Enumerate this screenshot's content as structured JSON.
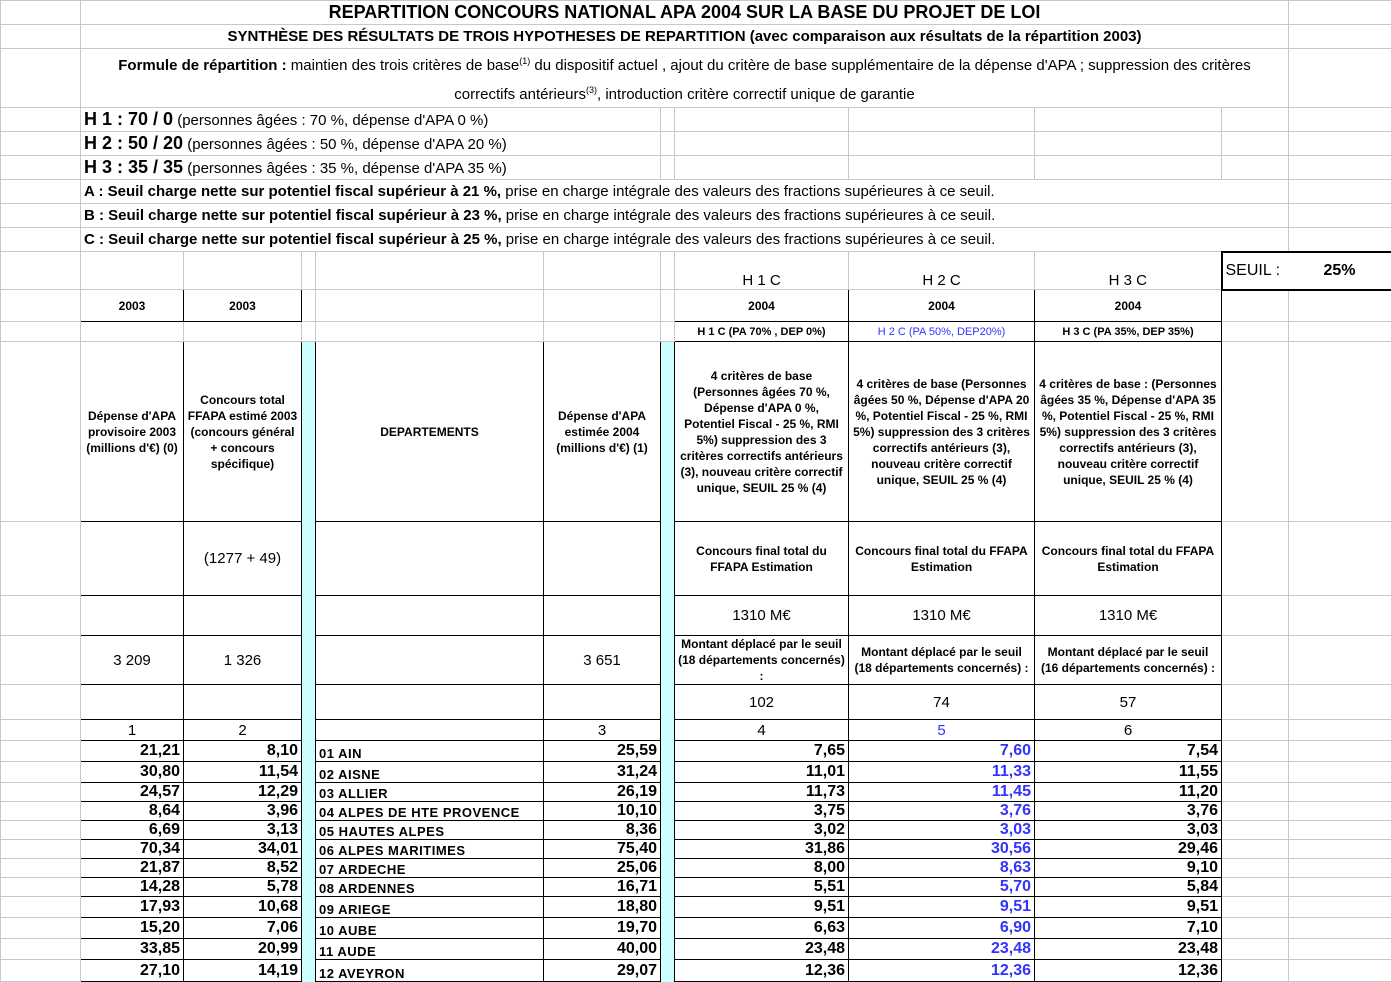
{
  "title": "REPARTITION CONCOURS NATIONAL APA 2004 SUR LA BASE DU PROJET DE LOI",
  "subtitle": "SYNTHÈSE DES RÉSULTATS DE TROIS HYPOTHESES DE REPARTITION (avec comparaison aux résultats de la répartition 2003)",
  "formula": {
    "label": "Formule de répartition :",
    "text1": " maintien des trois critères de base",
    "sup1": "(1)",
    "text2": " du dispositif actuel , ajout du critère de base supplémentaire de la dépense d'APA ; suppression des critères correctifs antérieurs",
    "sup2": "(3)",
    "text3": ", introduction critère correctif unique de garantie"
  },
  "hypotheses": [
    {
      "code": "H 1 : 70 / 0",
      "desc": " (personnes âgées : 70 %, dépense d'APA 0 %)"
    },
    {
      "code": "H 2 : 50 / 20",
      "desc": " (personnes âgées : 50 %, dépense d'APA 20 %)"
    },
    {
      "code": "H 3 : 35 / 35",
      "desc": " (personnes âgées : 35 %, dépense d'APA 35 %)"
    }
  ],
  "thresholds": [
    {
      "bold": "A : Seuil charge nette sur potentiel fiscal supérieur à 21 %,",
      "rest": " prise en charge intégrale des valeurs des fractions supérieures à ce seuil."
    },
    {
      "bold": "B : Seuil charge nette sur potentiel fiscal supérieur à 23 %,",
      "rest": " prise en charge intégrale des valeurs des fractions supérieures à ce seuil."
    },
    {
      "bold": "C  : Seuil charge nette sur potentiel fiscal supérieur à 25 %,",
      "rest": " prise en charge intégrale des valeurs des fractions supérieures à ce seuil."
    }
  ],
  "seuil": {
    "label": "SEUIL :",
    "value": "25%"
  },
  "scenarios": [
    {
      "name": "H 1 C",
      "year": "2004",
      "label": "H 1 C (PA 70% , DEP 0%)",
      "desc": "4  critères de base (Personnes âgées 70 %, Dépense d'APA 0 %, Potentiel Fiscal  - 25 %, RMI 5%) suppression des 3 critères correctifs antérieurs (3), nouveau critère correctif unique, SEUIL 25 % (4)",
      "final_label": "Concours final total du FFAPA Estimation",
      "final_value": "1310 M€",
      "moved_label": "Montant déplacé par le seuil (18 départements concernés) :",
      "moved_value": "102",
      "col": "4"
    },
    {
      "name": "H 2 C",
      "year": "2004",
      "label": "H 2 C (PA 50%, DEP20%)",
      "desc": "4  critères de base (Personnes âgées 50 %, Dépense d'APA 20 %, Potentiel Fiscal  - 25 %, RMI 5%) suppression des 3 critères correctifs antérieurs (3), nouveau critère correctif unique, SEUIL 25 % (4)",
      "final_label": "Concours final total du FFAPA Estimation",
      "final_value": "1310 M€",
      "moved_label": "Montant déplacé par le seuil (18 départements concernés) :",
      "moved_value": "74",
      "col": "5"
    },
    {
      "name": "H 3 C",
      "year": "2004",
      "label": "H 3 C (PA 35%, DEP 35%)",
      "desc": "4  critères de base : (Personnes âgées 35 %, Dépense d'APA 35 %, Potentiel Fiscal  - 25 %, RMI 5%) suppression des 3 critères correctifs antérieurs (3), nouveau critère correctif unique, SEUIL 25 % (4)",
      "final_label": "Concours final total du FFAPA Estimation",
      "final_value": "1310 M€",
      "moved_label": "Montant déplacé par le seuil (16 départements concernés) :",
      "moved_value": "57",
      "col": "6"
    }
  ],
  "columns": {
    "c1": {
      "year": "2003",
      "header": "Dépense  d'APA provisoire 2003 (millions d'€) (0)",
      "total": "3 209",
      "col": "1"
    },
    "c2": {
      "year": "2003",
      "header": "Concours total FFAPA estimé 2003 (concours général + concours spécifique)",
      "note": "(1277 + 49)",
      "total": "1 326",
      "col": "2"
    },
    "dept": {
      "header": "DEPARTEMENTS"
    },
    "c3": {
      "header": "Dépense  d'APA estimée 2004 (millions d'€) (1)",
      "total": "3 651",
      "col": "3"
    }
  },
  "colors": {
    "accent_blue": "#3333ff",
    "separator": "#ccffff"
  },
  "rows": [
    [
      "21,21",
      "8,10",
      "01 AIN",
      "25,59",
      "7,65",
      "7,60",
      "7,54"
    ],
    [
      "30,80",
      "11,54",
      "02 AISNE",
      "31,24",
      "11,01",
      "11,33",
      "11,55"
    ],
    [
      "24,57",
      "12,29",
      "03 ALLIER",
      "26,19",
      "11,73",
      "11,45",
      "11,20"
    ],
    [
      "8,64",
      "3,96",
      "04 ALPES DE HTE PROVENCE",
      "10,10",
      "3,75",
      "3,76",
      "3,76"
    ],
    [
      "6,69",
      "3,13",
      "05 HAUTES ALPES",
      "8,36",
      "3,02",
      "3,03",
      "3,03"
    ],
    [
      "70,34",
      "34,01",
      "06 ALPES MARITIMES",
      "75,40",
      "31,86",
      "30,56",
      "29,46"
    ],
    [
      "21,87",
      "8,52",
      "07 ARDECHE",
      "25,06",
      "8,00",
      "8,63",
      "9,10"
    ],
    [
      "14,28",
      "5,78",
      "08 ARDENNES",
      "16,71",
      "5,51",
      "5,70",
      "5,84"
    ],
    [
      "17,93",
      "10,68",
      "09 ARIEGE",
      "18,80",
      "9,51",
      "9,51",
      "9,51"
    ],
    [
      "15,20",
      "7,06",
      "10 AUBE",
      "19,70",
      "6,63",
      "6,90",
      "7,10"
    ],
    [
      "33,85",
      "20,99",
      "11 AUDE",
      "40,00",
      "23,48",
      "23,48",
      "23,48"
    ],
    [
      "27,10",
      "14,19",
      "12 AVEYRON",
      "29,07",
      "12,36",
      "12,36",
      "12,36"
    ]
  ]
}
